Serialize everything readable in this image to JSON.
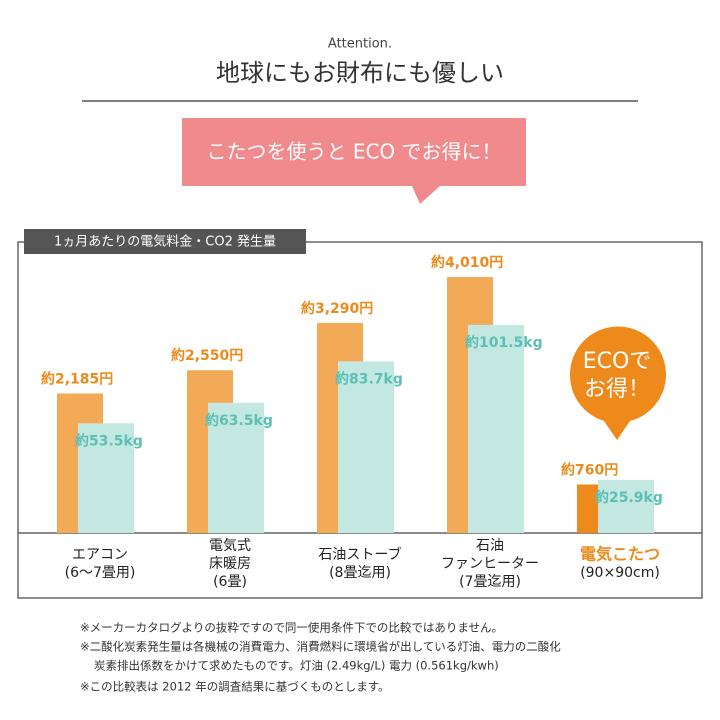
{
  "header": {
    "kicker": "Attention.",
    "title": "地球にもお財布にも優しい",
    "banner": "こたつを使うと ECO でお得に！"
  },
  "chart_data": {
    "type": "bar",
    "title": "1ヵ月あたりの電気料金・CO2 発生量",
    "categories": [
      [
        "エアコン",
        "(6〜7畳用)"
      ],
      [
        "電気式",
        "床暖房",
        "(6畳)"
      ],
      [
        "石油ストーブ",
        "(8畳迄用)"
      ],
      [
        "石油",
        "ファンヒーター",
        "(7畳迄用)"
      ],
      [
        "電気こたつ",
        "(90×90cm)"
      ]
    ],
    "category_colors": [
      "#222222",
      "#222222",
      "#222222",
      "#222222",
      "#ee8a1c"
    ],
    "series": [
      {
        "name": "電気料金",
        "colors": [
          "#f2aa57",
          "#f2aa57",
          "#f2aa57",
          "#f2aa57",
          "#ee8a1c"
        ],
        "label_color": "#ee8a1c",
        "values": [
          2185,
          2550,
          3290,
          4010,
          760
        ],
        "value_labels": [
          "約2,185円",
          "約2,550円",
          "約3,290円",
          "約4,010円",
          "約760円"
        ]
      },
      {
        "name": "CO2 発生量",
        "color": "#c3e8e2",
        "label_color": "#5cbfb4",
        "values": [
          53.5,
          63.5,
          83.7,
          101.5,
          25.9
        ],
        "value_labels": [
          "約53.5kg",
          "約63.5kg",
          "約83.7kg",
          "約101.5kg",
          "約25.9kg"
        ]
      }
    ],
    "badge": [
      "ECOで",
      "お得！"
    ]
  },
  "notes": [
    "※メーカーカタログよりの抜粋ですので同一使用条件下での比較ではありません。",
    "※二酸化炭素発生量は各機械の消費電力、消費燃料に環境省が出している灯油、電力の二酸化",
    "炭素排出係数をかけて求めたものです。灯油 (2.49kg/L) 電力 (0.561kg/kwh)",
    "※この比較表は 2012 年の調査結果に基づくものとします。"
  ]
}
